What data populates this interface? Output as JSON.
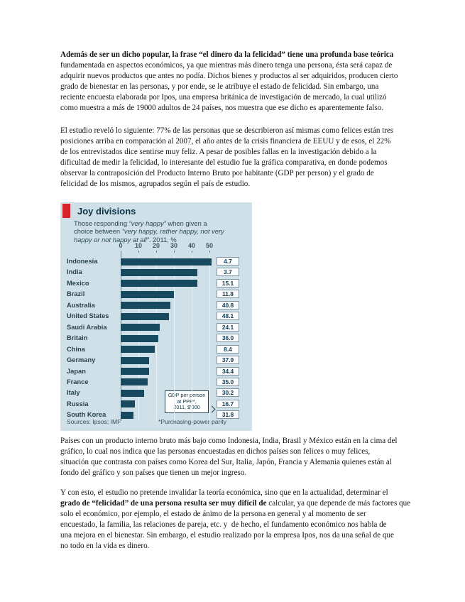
{
  "article": {
    "p1": {
      "l1": "Además de ser un dicho popular, la frase “el dinero da la felicidad” tiene una profunda base teórica",
      "l2": "fundamentada en aspectos económicos, ya que mientras más dinero tenga una persona, ésta será capaz de",
      "l3": "adquirir nuevos productos que antes no podía. Dichos bienes y productos al ser adquiridos, producen cierto",
      "l4": "grado de bienestar en las personas, y por ende, se le atribuye el estado de felicidad. Sin embargo, una",
      "l5": "reciente encuesta elaborada por Ipos, una empresa británica de investigación de mercado, la cual utilizó",
      "l6": "como muestra a más de 19000 adultos de 24 países, nos muestra que ese dicho es aparentemente falso."
    },
    "p2": {
      "l1": "El estudio reveló lo siguiente: 77% de las personas que se describieron así mismas como felices están tres",
      "l2": "posiciones arriba en comparación al 2007, el año antes de la crisis financiera de EEUU y de esos, el 22%",
      "l3": "de los entrevistados dice sentirse muy feliz. A pesar de posibles fallas en la investigación debido a la",
      "l4": "dificultad de medir la felicidad, lo interesante del estudio fue la gráfica comparativa, en donde podemos",
      "l5": "observar la contraposición del Producto Interno Bruto por habitante (GDP per person) y el grado de",
      "l6": "felicidad de los mismos, agrupados según el país de estudio."
    },
    "p3": {
      "l1": "Países con un producto interno bruto más bajo como Indonesia, India, Brasil y México están en la cima del",
      "l2": "gráfico, lo cual nos indica que las personas encuestadas en dichos países son felices o muy felices,",
      "l3": "situación que contrasta con países como Korea del Sur, Italia, Japón, Francia y Alemania quienes están al",
      "l4": "fondo del gráfico y son países que tienen un mejor ingreso."
    },
    "p4": {
      "l1": "Y con esto, el estudio no pretende invalidar la teoría económica, sino que en la actualidad, determinar el",
      "l2_bold": "grado de “felicidad” de una persona resulta ser muy difícil de",
      "l2_rest": " calcular, ya que depende de más factores que",
      "l3": "solo el económico, por ejemplo, el estado de ánimo de la persona en general y al momento de ser",
      "l4": "encuestado, la familia, las relaciones de pareja, etc. y  de hecho, el fundamento económico nos habla de",
      "l5": "una mejora en el bienestar. Sin embargo, el estudio realizado por la empresa Ipos, nos da una señal de que",
      "l6": "no todo en la vida es dinero."
    }
  },
  "chart_data": {
    "type": "bar",
    "title": "Joy divisions",
    "subtitle_parts": [
      {
        "text": "Those responding ",
        "italic": false
      },
      {
        "text": "“very happy”",
        "italic": true
      },
      {
        "text": " when given a choice between ",
        "italic": false
      },
      {
        "text": "“very happy, rather happy, not very happy or not happy at all”",
        "italic": true
      },
      {
        "text": ". 2011, %",
        "italic": false
      }
    ],
    "categories": [
      "Indonesia",
      "India",
      "Mexico",
      "Brazil",
      "Australia",
      "United States",
      "Saudi Arabia",
      "Britain",
      "China",
      "Germany",
      "Japan",
      "France",
      "Italy",
      "Russia",
      "South Korea"
    ],
    "series": [
      {
        "name": "Responding very happy, %",
        "values": [
          51,
          43,
          43,
          30,
          28,
          27,
          22,
          21,
          19,
          16,
          16,
          15,
          13,
          8,
          7
        ]
      },
      {
        "name": "GDP per person at PPP, 2011, $'000",
        "values": [
          4.7,
          3.7,
          15.1,
          11.8,
          40.8,
          48.1,
          24.1,
          36.0,
          8.4,
          37.9,
          34.4,
          35.0,
          30.2,
          16.7,
          31.8
        ],
        "display": [
          "4.7",
          "3.7",
          "15.1",
          "11.8",
          "40.8",
          "48.1",
          "24.1",
          "36.0",
          "8.4",
          "37.9",
          "34.4",
          "35.0",
          "30.2",
          "16.7",
          "31.8"
        ]
      }
    ],
    "xlabel": "",
    "ylabel": "",
    "xticks": [
      0,
      10,
      20,
      30,
      40,
      50
    ],
    "xlim": [
      0,
      52
    ],
    "grid": true,
    "legend_position": "none",
    "callout": {
      "l1": "GDP per person",
      "l2": "at PPP*,",
      "l3": "2011, $'000"
    },
    "sources": "Sources: Ipsos; IMF",
    "footnote": "*Purchasing-power parity",
    "colors": {
      "bar": "#174a5f",
      "background": "#cfe0e8",
      "accent_red": "#d9232a"
    }
  }
}
